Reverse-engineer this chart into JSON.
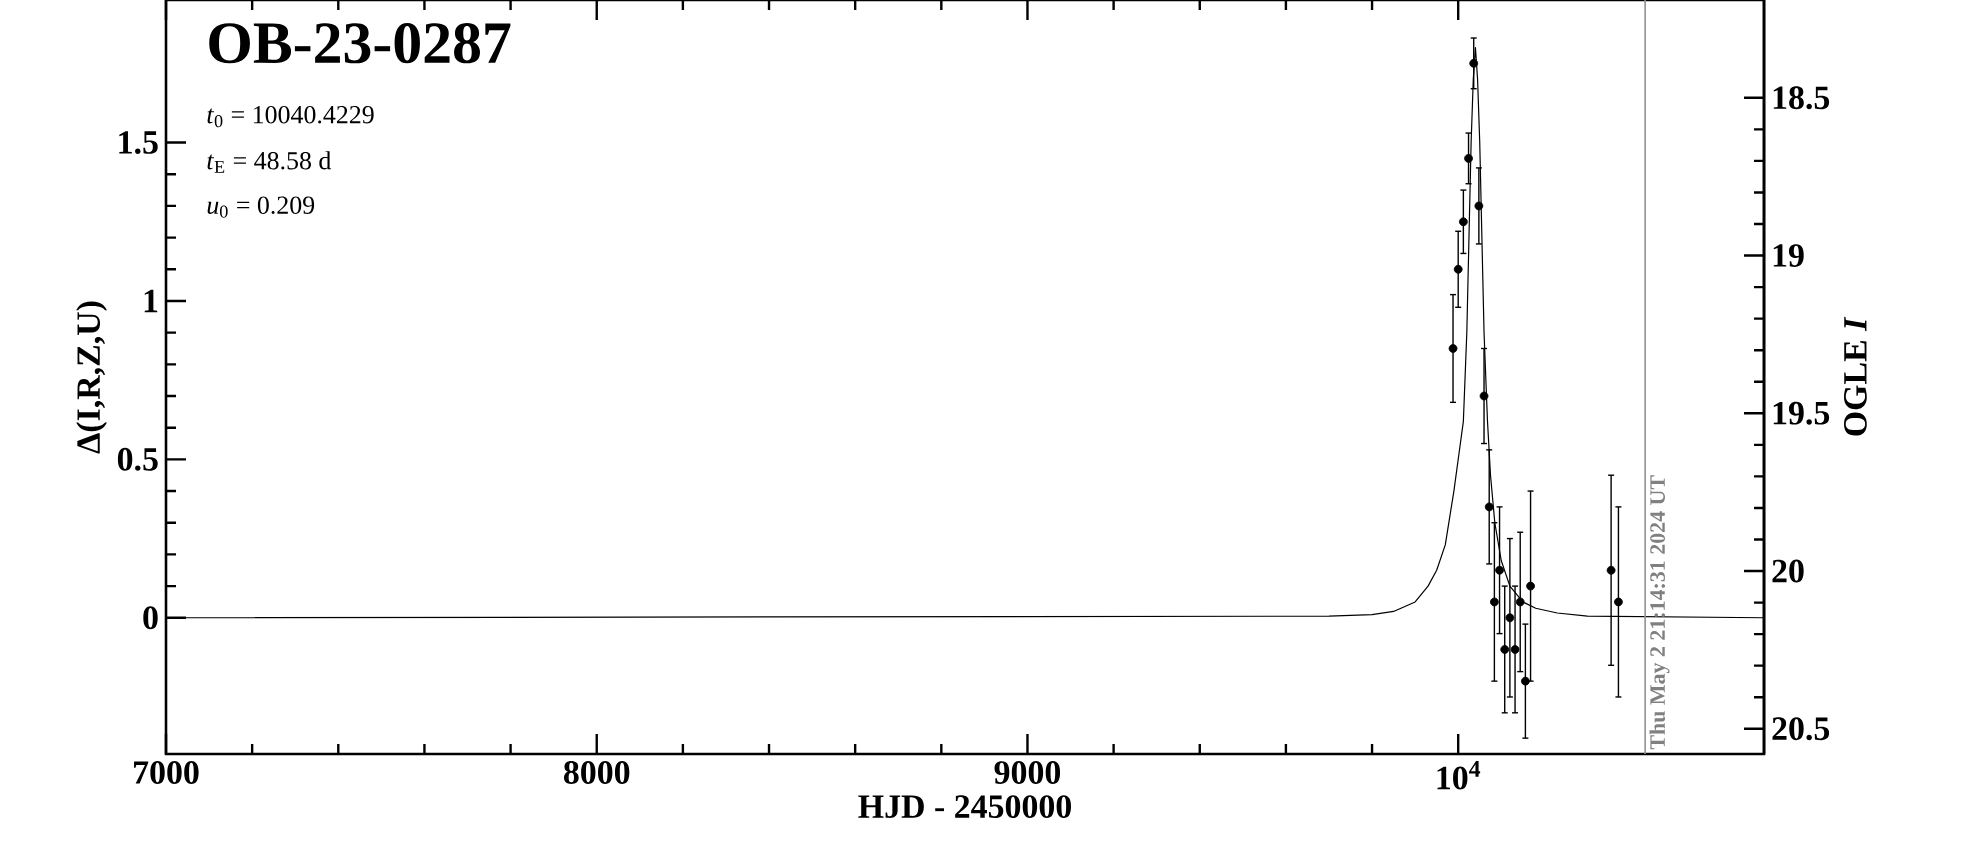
{
  "chart_data": {
    "type": "scatter",
    "title": "OB-23-0287",
    "xlabel": "HJD - 2450000",
    "ylabel": "Δ(I,R,Z,U)",
    "y2label": "OGLE *I*",
    "annotations": [
      "*t*$_{0}$ = 10040.4229",
      "*t*$_{E}$ = 48.58 d",
      "*u*$_{0}$ = 0.209",
      {
        "text": "Thu May  2 21:14:31 2024 UT",
        "x": 10434
      }
    ],
    "xlim": [
      7000,
      10710
    ],
    "xticks": [
      7000,
      8000,
      9000,
      {
        "value": 10000,
        "label": "10$^{4}$"
      }
    ],
    "ylim": [
      -0.43,
      1.95
    ],
    "yticks": [
      0,
      0.5,
      1,
      1.5
    ],
    "y2lim": [
      20.58,
      18.19
    ],
    "y2ticks": [
      18.5,
      19,
      19.5,
      20,
      20.5
    ],
    "grid": false,
    "ref_lines": [
      {
        "axis": "x",
        "value": 10434,
        "color": "#909090"
      }
    ],
    "series": [
      {
        "type": "line",
        "color": "#000000",
        "line_style": "solid",
        "marker": "none",
        "x": [
          7000,
          9700,
          9800,
          9850,
          9900,
          9930,
          9950,
          9970,
          9990,
          10005,
          10012,
          10020,
          10025,
          10030,
          10035,
          10040,
          10045,
          10050,
          10055,
          10060,
          10068,
          10075,
          10085,
          10100,
          10120,
          10150,
          10180,
          10230,
          10300,
          10710
        ],
        "values": [
          0,
          0.005,
          0.01,
          0.02,
          0.05,
          0.1,
          0.15,
          0.23,
          0.4,
          0.55,
          0.62,
          0.9,
          1.2,
          1.5,
          1.7,
          1.8,
          1.7,
          1.5,
          1.2,
          0.9,
          0.62,
          0.45,
          0.3,
          0.18,
          0.1,
          0.05,
          0.03,
          0.015,
          0.005,
          0
        ]
      },
      {
        "color": "#000000",
        "marker": "circle",
        "x": [
          9988,
          10000,
          10012,
          10024,
          10036,
          10048,
          10060,
          10072,
          10084,
          10096,
          10108,
          10120,
          10132,
          10144,
          10156,
          10168,
          10355,
          10372
        ],
        "values": [
          0.85,
          1.1,
          1.25,
          1.45,
          1.75,
          1.3,
          0.7,
          0.35,
          0.05,
          0.15,
          -0.1,
          0.0,
          -0.1,
          0.05,
          -0.2,
          0.1,
          0.15,
          0.05
        ],
        "errors": [
          0.17,
          0.12,
          0.1,
          0.08,
          0.08,
          0.12,
          0.15,
          0.18,
          0.25,
          0.2,
          0.2,
          0.25,
          0.2,
          0.22,
          0.18,
          0.3,
          0.3,
          0.3
        ]
      }
    ]
  }
}
